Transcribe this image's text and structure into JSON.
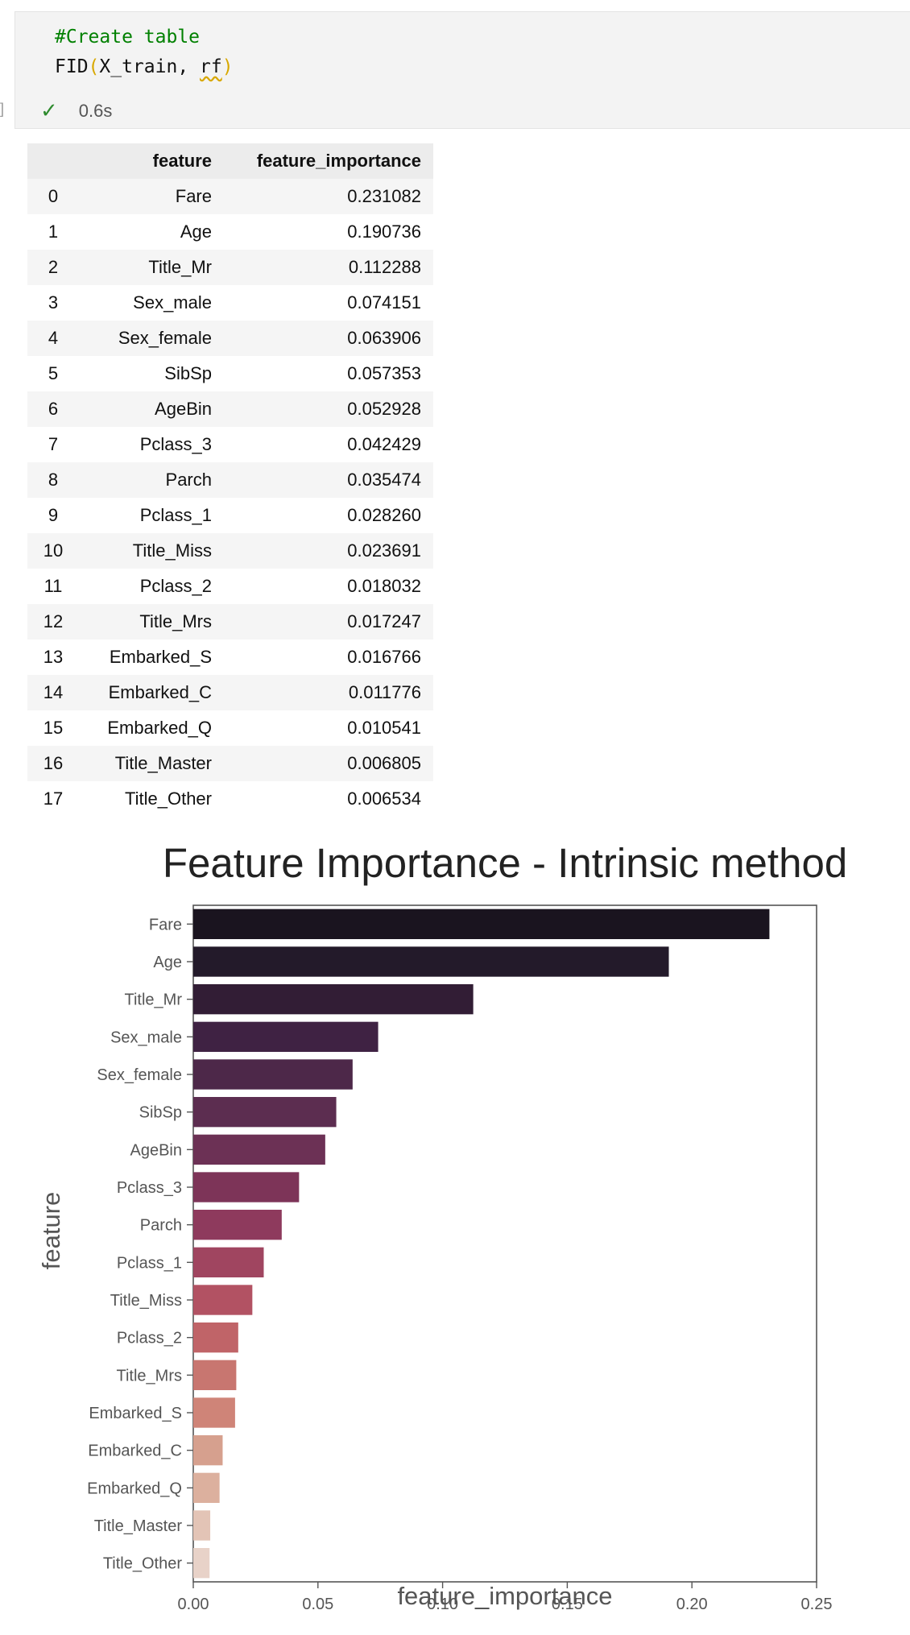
{
  "cell": {
    "code_comment": "#Create table",
    "code_fn": "FID",
    "code_open": "(",
    "code_args": "X_train, ",
    "code_arg2": "rf",
    "code_close": ")",
    "exec_time": "0.6s",
    "gutter": "]"
  },
  "table": {
    "columns": [
      "",
      "feature",
      "feature_importance"
    ],
    "rows": [
      [
        "0",
        "Fare",
        "0.231082"
      ],
      [
        "1",
        "Age",
        "0.190736"
      ],
      [
        "2",
        "Title_Mr",
        "0.112288"
      ],
      [
        "3",
        "Sex_male",
        "0.074151"
      ],
      [
        "4",
        "Sex_female",
        "0.063906"
      ],
      [
        "5",
        "SibSp",
        "0.057353"
      ],
      [
        "6",
        "AgeBin",
        "0.052928"
      ],
      [
        "7",
        "Pclass_3",
        "0.042429"
      ],
      [
        "8",
        "Parch",
        "0.035474"
      ],
      [
        "9",
        "Pclass_1",
        "0.028260"
      ],
      [
        "10",
        "Title_Miss",
        "0.023691"
      ],
      [
        "11",
        "Pclass_2",
        "0.018032"
      ],
      [
        "12",
        "Title_Mrs",
        "0.017247"
      ],
      [
        "13",
        "Embarked_S",
        "0.016766"
      ],
      [
        "14",
        "Embarked_C",
        "0.011776"
      ],
      [
        "15",
        "Embarked_Q",
        "0.010541"
      ],
      [
        "16",
        "Title_Master",
        "0.006805"
      ],
      [
        "17",
        "Title_Other",
        "0.006534"
      ]
    ]
  },
  "chart_data": {
    "type": "bar",
    "orientation": "horizontal",
    "title": "Feature Importance - Intrinsic method",
    "xlabel": "feature_importance",
    "ylabel": "feature",
    "xlim": [
      0,
      0.25
    ],
    "xticks": [
      "0.00",
      "0.05",
      "0.10",
      "0.15",
      "0.20",
      "0.25"
    ],
    "grid": false,
    "categories": [
      "Fare",
      "Age",
      "Title_Mr",
      "Sex_male",
      "Sex_female",
      "SibSp",
      "AgeBin",
      "Pclass_3",
      "Parch",
      "Pclass_1",
      "Title_Miss",
      "Pclass_2",
      "Title_Mrs",
      "Embarked_S",
      "Embarked_C",
      "Embarked_Q",
      "Title_Master",
      "Title_Other"
    ],
    "values": [
      0.231082,
      0.190736,
      0.112288,
      0.074151,
      0.063906,
      0.057353,
      0.052928,
      0.042429,
      0.035474,
      0.02826,
      0.023691,
      0.018032,
      0.017247,
      0.016766,
      0.011776,
      0.010541,
      0.006805,
      0.006534
    ],
    "colors": [
      "#1a141f",
      "#231a2a",
      "#321d35",
      "#3f2243",
      "#4d2849",
      "#5c2d50",
      "#6c3155",
      "#7d3458",
      "#8e3a5d",
      "#a04560",
      "#b25263",
      "#c06468",
      "#c87670",
      "#cf8478",
      "#d6a08e",
      "#dcb09e",
      "#e3c4b6",
      "#e8d2c8"
    ]
  }
}
